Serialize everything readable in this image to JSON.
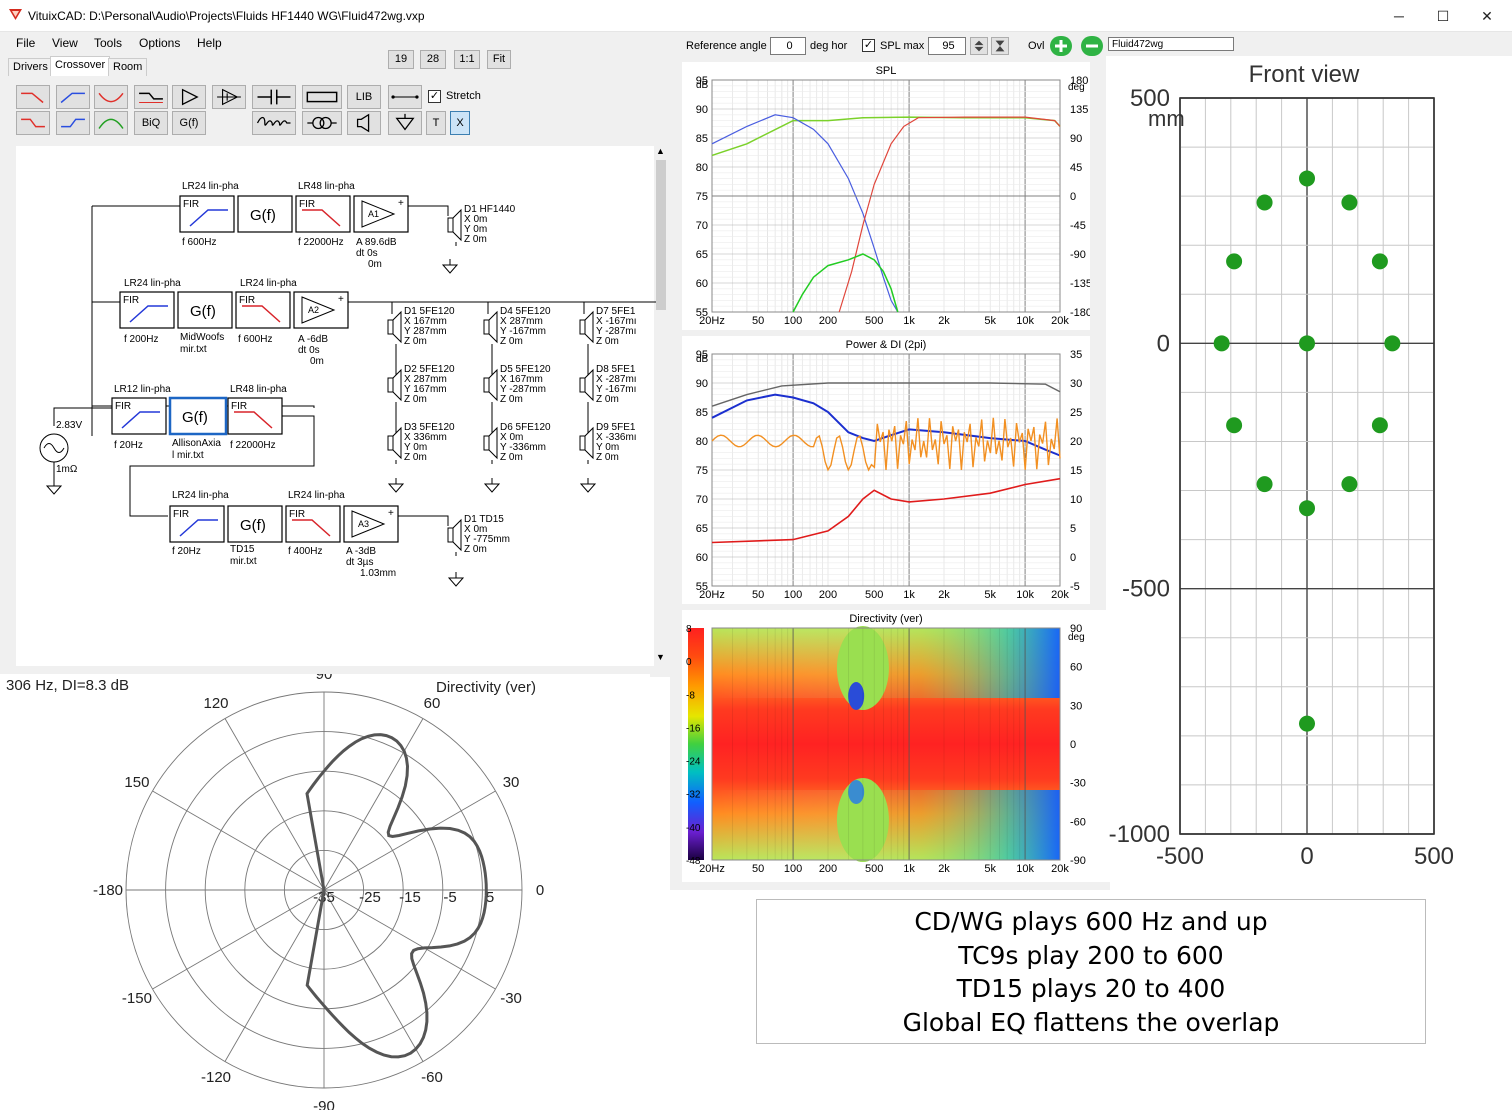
{
  "window": {
    "title": "VituixCAD: D:\\Personal\\Audio\\Projects\\Fluids HF1440 WG\\Fluid472wg.vxp",
    "minimize": "─",
    "maximize": "☐",
    "close": "✕"
  },
  "menu": [
    "File",
    "View",
    "Tools",
    "Options",
    "Help"
  ],
  "tabs": [
    "Drivers",
    "Crossover",
    "Room"
  ],
  "zoom_buttons": [
    "19",
    "28",
    "1:1",
    "Fit"
  ],
  "toolbar": {
    "lib": "LIB",
    "biq": "BiQ",
    "gf": "G(f)",
    "t": "T",
    "x": "X",
    "stretch_label": "Stretch",
    "stretch_checked": true
  },
  "topbar": {
    "ref_angle_label": "Reference angle",
    "ref_angle_value": "0",
    "deg_hor": "deg hor",
    "spl_max_label": "SPL max",
    "spl_max_checked": true,
    "spl_max_value": "95",
    "ovl_label": "Ovl",
    "ovl_name": "Fluid472wg"
  },
  "schematic": {
    "source_v": "2.83V",
    "source_r": "1mΩ",
    "fir": "FIR",
    "gf": "G(f)",
    "rows": [
      {
        "filters": [
          "LR24 lin-pha",
          "LR48 lin-pha"
        ],
        "f1": "f 600Hz",
        "f2": "f 22000Hz",
        "amp": "A1",
        "amp_info": [
          "A 89.6dB",
          "dt 0s",
          "0m"
        ]
      },
      {
        "filters": [
          "LR24 lin-pha",
          "LR24 lin-pha"
        ],
        "f1": "f 200Hz",
        "gf_label": [
          "MidWoofs",
          "mir.txt"
        ],
        "f2": "f 600Hz",
        "amp": "A2",
        "amp_info": [
          "A -6dB",
          "dt 0s",
          "0m"
        ]
      },
      {
        "filters": [
          "LR12 lin-pha",
          "LR48 lin-pha"
        ],
        "f1": "f 20Hz",
        "gf_label": [
          "AllisonAxia",
          "l mir.txt"
        ],
        "f2": "f 22000Hz"
      },
      {
        "filters": [
          "LR24 lin-pha",
          "LR24 lin-pha"
        ],
        "f1": "f 20Hz",
        "gf_label": [
          "TD15",
          "mir.txt"
        ],
        "f2": "f 400Hz",
        "amp": "A3",
        "amp_info": [
          "A -3dB",
          "dt 3µs",
          "1.03mm"
        ]
      }
    ],
    "drivers": [
      {
        "name": "D1 HF1440",
        "lines": [
          "X 0m",
          "Y 0m",
          "Z 0m"
        ]
      },
      {
        "name": "D1 5FE120",
        "lines": [
          "X 167mm",
          "Y 287mm",
          "Z 0m"
        ]
      },
      {
        "name": "D2 5FE120",
        "lines": [
          "X 287mm",
          "Y 167mm",
          "Z 0m"
        ]
      },
      {
        "name": "D3 5FE120",
        "lines": [
          "X 336mm",
          "Y 0m",
          "Z 0m"
        ]
      },
      {
        "name": "D4 5FE120",
        "lines": [
          "X 287mm",
          "Y -167mm",
          "Z 0m"
        ]
      },
      {
        "name": "D5 5FE120",
        "lines": [
          "X 167mm",
          "Y -287mm",
          "Z 0m"
        ]
      },
      {
        "name": "D6 5FE120",
        "lines": [
          "X 0m",
          "Y -336mm",
          "Z 0m"
        ]
      },
      {
        "name": "D7 5FE1",
        "lines": [
          "X -167mı",
          "Y -287mı",
          "Z 0m"
        ]
      },
      {
        "name": "D8 5FE1",
        "lines": [
          "X -287mı",
          "Y -167mı",
          "Z 0m"
        ]
      },
      {
        "name": "D9 5FE1",
        "lines": [
          "X -336mı",
          "Y 0m",
          "Z 0m"
        ]
      },
      {
        "name": "D1 TD15",
        "lines": [
          "X 0m",
          "Y -775mm",
          "Z 0m"
        ]
      }
    ]
  },
  "spl": {
    "title": "SPL",
    "unit_left": "dB",
    "unit_right": "deg",
    "y_left": [
      "95",
      "90",
      "85",
      "80",
      "75",
      "70",
      "65",
      "60",
      "55"
    ],
    "y_right": [
      "180",
      "135",
      "90",
      "45",
      "0",
      "-45",
      "-90",
      "-135",
      "-180"
    ],
    "x": [
      "20Hz",
      "50",
      "100",
      "200",
      "500",
      "1k",
      "2k",
      "5k",
      "10k",
      "20k"
    ],
    "colors": {
      "total": "#7bd12a",
      "low": "#4a5ee0",
      "high": "#e0453a",
      "mid": "#22cc22",
      "phase": "#808080"
    }
  },
  "power": {
    "title": "Power & DI (2pi)",
    "unit_left": "dB",
    "y_left": [
      "95",
      "90",
      "85",
      "80",
      "75",
      "70",
      "65",
      "60",
      "55"
    ],
    "y_right": [
      "35",
      "30",
      "25",
      "20",
      "15",
      "10",
      "5",
      "0",
      "-5"
    ],
    "x": [
      "20Hz",
      "50",
      "100",
      "200",
      "500",
      "1k",
      "2k",
      "5k",
      "10k",
      "20k"
    ],
    "colors": {
      "on_axis": "#666666",
      "power": "#1b2fcf",
      "di_er": "#f29022",
      "di": "#e01b1b"
    }
  },
  "directivity_map": {
    "title": "Directivity (ver)",
    "unit_left": "dB",
    "unit_right": "deg",
    "scale": [
      "8",
      "0",
      "-8",
      "-16",
      "-24",
      "-32",
      "-40",
      "-48"
    ],
    "y_right": [
      "90",
      "60",
      "30",
      "0",
      "-30",
      "-60",
      "-90"
    ],
    "x": [
      "20Hz",
      "50",
      "100",
      "200",
      "500",
      "1k",
      "2k",
      "5k",
      "10k",
      "20k"
    ]
  },
  "polar": {
    "status": "306 Hz, DI=8.3 dB",
    "title": "Directivity (ver)",
    "angles": [
      "90",
      "60",
      "30",
      "0",
      "-30",
      "-60",
      "-90",
      "-120",
      "-150",
      "-180",
      "150",
      "120"
    ],
    "rings": [
      "-35",
      "-25",
      "-15",
      "-5",
      "5"
    ]
  },
  "front_view": {
    "title": "Front view",
    "unit": "mm",
    "y_ticks": [
      "500",
      "0",
      "-500",
      "-1000"
    ],
    "x_ticks": [
      "-500",
      "0",
      "500"
    ],
    "dot_color": "#1f9a1f",
    "points_mm": [
      [
        0,
        0
      ],
      [
        0,
        -775
      ],
      [
        167,
        287
      ],
      [
        287,
        167
      ],
      [
        336,
        0
      ],
      [
        287,
        -167
      ],
      [
        167,
        -287
      ],
      [
        0,
        -336
      ],
      [
        -167,
        -287
      ],
      [
        -287,
        -167
      ],
      [
        -336,
        0
      ],
      [
        -287,
        167
      ],
      [
        -167,
        287
      ],
      [
        0,
        336
      ]
    ]
  },
  "caption": [
    "CD/WG plays 600 Hz and up",
    "TC9s play 200 to 600",
    "TD15 plays 20 to 400",
    "Global EQ flattens the overlap"
  ]
}
